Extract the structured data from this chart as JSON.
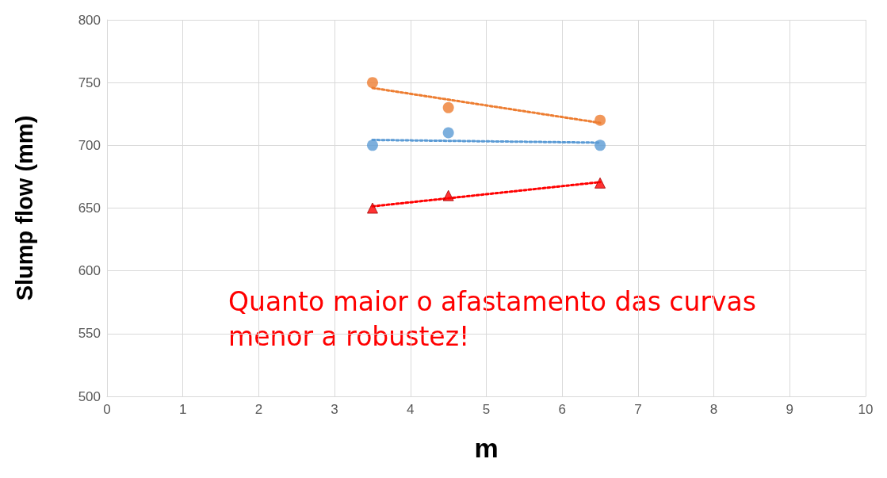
{
  "chart_data": {
    "type": "scatter",
    "xlabel": "m",
    "ylabel": "Slump flow (mm)",
    "xlim": [
      0,
      10
    ],
    "xticks": [
      0,
      1,
      2,
      3,
      4,
      5,
      6,
      7,
      8,
      9,
      10
    ],
    "ylim": [
      500,
      800
    ],
    "yticks": [
      500,
      550,
      600,
      650,
      700,
      750,
      800
    ],
    "grid": true,
    "annotations": [
      "Quanto maior o afastamento das curvas menor a robustez!"
    ],
    "series": [
      {
        "color": "#ed7d31",
        "marker": "circle",
        "x": [
          3.5,
          4.5,
          6.5
        ],
        "values": [
          750,
          730,
          720
        ]
      },
      {
        "color": "#5b9bd5",
        "marker": "circle",
        "x": [
          3.5,
          4.5,
          6.5
        ],
        "values": [
          700,
          710,
          700
        ]
      },
      {
        "color": "#ff0000",
        "marker": "triangle",
        "x": [
          3.5,
          4.5,
          6.5
        ],
        "values": [
          650,
          660,
          670
        ]
      },
      {
        "type": "line",
        "color": "#ed7d31",
        "marker": "none",
        "line_style": "dotted",
        "x": [
          3.5,
          6.5
        ],
        "values": [
          745.7,
          717.9
        ]
      },
      {
        "type": "line",
        "color": "#5b9bd5",
        "marker": "none",
        "line_style": "dotted",
        "x": [
          3.5,
          6.5
        ],
        "values": [
          704.3,
          702.1
        ]
      },
      {
        "type": "line",
        "color": "#ff0000",
        "marker": "none",
        "line_style": "dotted",
        "x": [
          3.5,
          6.5
        ],
        "values": [
          651.4,
          670.7
        ]
      }
    ]
  }
}
